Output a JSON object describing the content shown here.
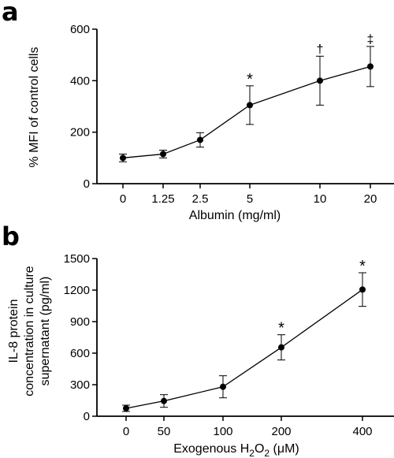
{
  "chart_data": [
    {
      "panel": "a",
      "type": "line",
      "categories": [
        "0",
        "1.25",
        "2.5",
        "5",
        "10",
        "20"
      ],
      "values": [
        100,
        115,
        170,
        305,
        400,
        455
      ],
      "errors": [
        15,
        15,
        28,
        75,
        95,
        78
      ],
      "annotations": [
        "",
        "",
        "",
        "*",
        "†",
        "‡"
      ],
      "xlabel": "Albumin (mg/ml)",
      "ylabel": "% MFI of control cells",
      "ylim": [
        0,
        600
      ],
      "yticks": [
        0,
        200,
        400,
        600
      ],
      "grid": false
    },
    {
      "panel": "b",
      "type": "line",
      "categories": [
        "0",
        "50",
        "100",
        "200",
        "400"
      ],
      "values": [
        75,
        145,
        280,
        655,
        1205
      ],
      "errors": [
        30,
        60,
        105,
        120,
        160
      ],
      "annotations": [
        "",
        "",
        "",
        "*",
        "*"
      ],
      "xlabel_parts": [
        "Exogenous H",
        "2",
        "O",
        "2",
        " (μM)"
      ],
      "ylabel_lines": [
        "IL-8 protein",
        "concentration in culture",
        "supernatant (pg/ml)"
      ],
      "ylim": [
        0,
        1500
      ],
      "yticks": [
        0,
        300,
        600,
        900,
        1200,
        1500
      ],
      "grid": false
    }
  ]
}
